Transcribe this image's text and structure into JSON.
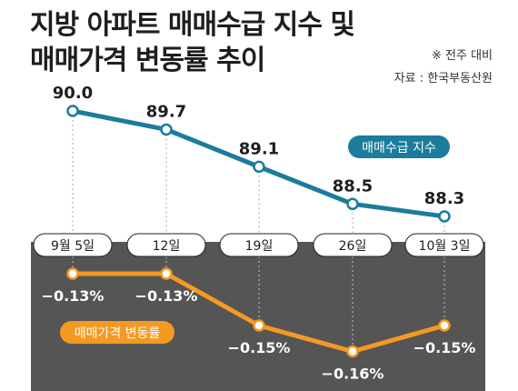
{
  "title": {
    "line1": "지방 아파트 매매수급 지수 및",
    "line2": "매매가격 변동률 추이"
  },
  "notes": {
    "basis": "※ 전주 대비",
    "source": "자료 : 한국부동산원"
  },
  "chart_data": {
    "type": "line",
    "categories": [
      "9월 5일",
      "12일",
      "19일",
      "26일",
      "10월 3일"
    ],
    "series": [
      {
        "name": "매매수급 지수",
        "values": [
          90.0,
          89.7,
          89.1,
          88.5,
          88.3
        ],
        "labels": [
          "90.0",
          "89.7",
          "89.1",
          "88.5",
          "88.3"
        ],
        "color": "#1b7c9c"
      },
      {
        "name": "매매가격 변동률",
        "values": [
          -0.13,
          -0.13,
          -0.15,
          -0.16,
          -0.15
        ],
        "labels": [
          "−0.13%",
          "−0.13%",
          "−0.15%",
          "−0.16%",
          "−0.15%"
        ],
        "unit": "%",
        "color": "#f39a22"
      }
    ],
    "legend": [
      "매매수급 지수",
      "매매가격 변동률"
    ],
    "grid": false,
    "colors": {
      "lower_panel": "#555555",
      "category_pill": "#ffffff",
      "text_dark": "#1e1e1e",
      "text_light": "#ffffff"
    }
  }
}
